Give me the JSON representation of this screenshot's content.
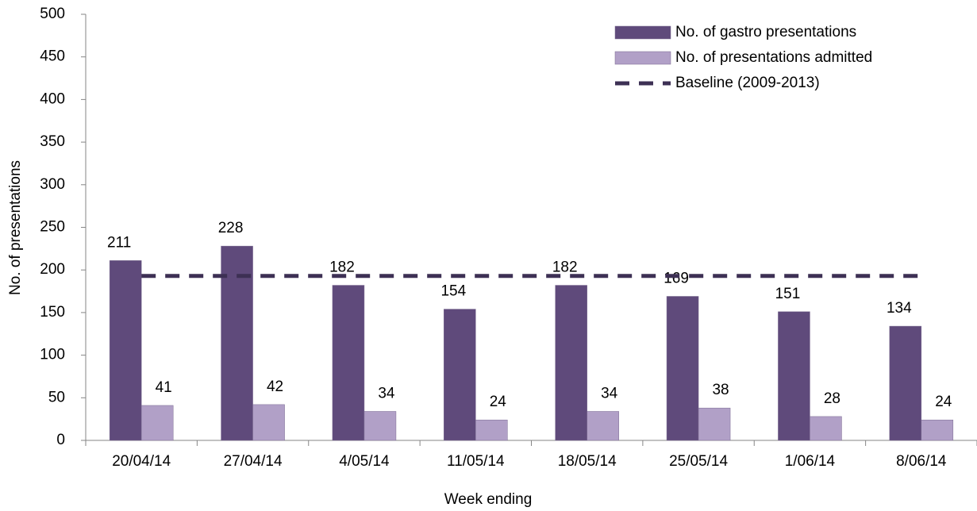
{
  "chart_data": {
    "type": "bar",
    "xlabel": "Week ending",
    "ylabel": "No. of presentations",
    "categories": [
      "20/04/14",
      "27/04/14",
      "4/05/14",
      "11/05/14",
      "18/05/14",
      "25/05/14",
      "1/06/14",
      "8/06/14"
    ],
    "series": [
      {
        "name": "No. of gastro presentations",
        "color": "#5f4a7b",
        "type": "bar",
        "values": [
          211,
          228,
          182,
          154,
          182,
          169,
          151,
          134
        ]
      },
      {
        "name": "No. of presentations admitted",
        "color": "#b1a0c7",
        "type": "bar",
        "values": [
          41,
          42,
          34,
          24,
          34,
          38,
          28,
          24
        ]
      },
      {
        "name": "Baseline (2009-2013)",
        "color": "#3d3054",
        "type": "line",
        "values": [
          193,
          193,
          193,
          193,
          193,
          193,
          193,
          193
        ]
      }
    ],
    "ylim": [
      0,
      500
    ],
    "yticks": [
      0,
      50,
      100,
      150,
      200,
      250,
      300,
      350,
      400,
      450,
      500
    ],
    "legend": "upper right"
  }
}
